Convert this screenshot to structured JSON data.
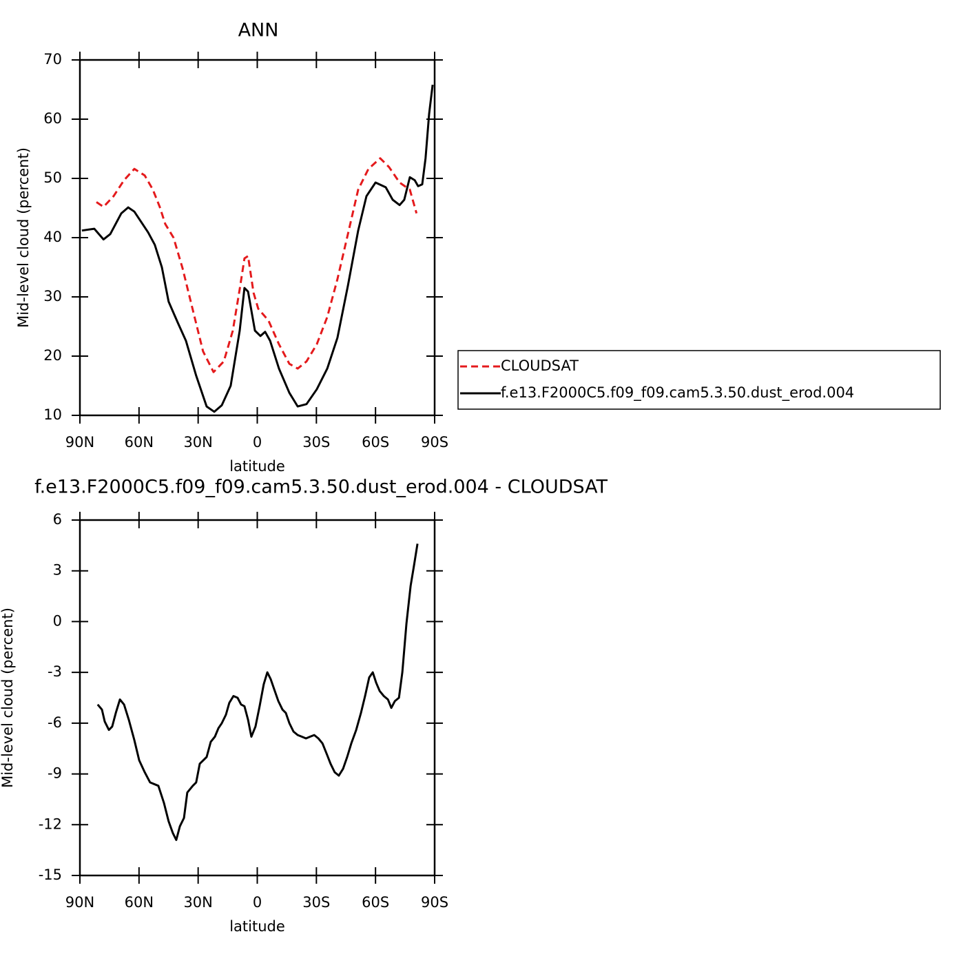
{
  "chart_data": [
    {
      "type": "line",
      "title": "ANN",
      "xlabel": "latitude",
      "ylabel": "Mid-level cloud (percent)",
      "xlim": [
        90,
        -90
      ],
      "xticks": [
        {
          "value": 90,
          "label": "90N"
        },
        {
          "value": 60,
          "label": "60N"
        },
        {
          "value": 30,
          "label": "30N"
        },
        0,
        {
          "value": -30,
          "label": "30S"
        },
        {
          "value": -60,
          "label": "60S"
        },
        {
          "value": -90,
          "label": "90S"
        }
      ],
      "ylim": [
        10,
        70
      ],
      "yticks": [
        10,
        20,
        30,
        40,
        50,
        60,
        70
      ],
      "legend": "outside-right",
      "series": [
        {
          "name": "CLOUDSAT",
          "color": "#e41a1c",
          "dash": true,
          "x": [
            81.6,
            78,
            72.9,
            67.6,
            62.4,
            57.1,
            53,
            49.5,
            46.7,
            42.5,
            37.9,
            32.7,
            27.5,
            22.2,
            17,
            12.4,
            8.9,
            6.5,
            4.7,
            1.9,
            -0.5,
            -5.7,
            -11,
            -16.3,
            -20.5,
            -25,
            -30.2,
            -35.5,
            -40.7,
            -46,
            -51.2,
            -56.4,
            -62.4,
            -66.9,
            -72.2,
            -77.4,
            -80.8
          ],
          "values": [
            46,
            45.2,
            47,
            49.7,
            51.6,
            50.5,
            48.1,
            45.2,
            42.3,
            40,
            34.8,
            27.8,
            20.8,
            17.3,
            19.1,
            24.3,
            31.3,
            36.5,
            36.9,
            30.7,
            28,
            26,
            22,
            18.7,
            17.9,
            19.1,
            22,
            26.6,
            33,
            40.6,
            48.1,
            51.6,
            53.4,
            51.9,
            49.3,
            48.1,
            44.1
          ]
        },
        {
          "name": "f.e13.F2000C5.f09_f09.cam5.3.50.dust_erod.004",
          "color": "#000000",
          "dash": false,
          "x": [
            89,
            82.7,
            78,
            74.6,
            69,
            65.5,
            62.4,
            59,
            55.4,
            52,
            48.4,
            45,
            40.4,
            36.2,
            31,
            25.7,
            21.8,
            18,
            13.5,
            8.9,
            6.5,
            4.7,
            1.2,
            -1.6,
            -4,
            -6.5,
            -11,
            -16.3,
            -20.5,
            -25,
            -30.2,
            -35.5,
            -40.7,
            -46,
            -51.2,
            -55.4,
            -60,
            -65.2,
            -68.7,
            -72.2,
            -74.6,
            -77.4,
            -79.9,
            -81.6,
            -83.7,
            -85.4,
            -87.2,
            -89
          ],
          "values": [
            41.2,
            41.5,
            39.7,
            40.6,
            44.1,
            45.1,
            44.4,
            42.7,
            40.9,
            38.8,
            35,
            29.2,
            25.7,
            22.6,
            16.7,
            11.5,
            10.6,
            11.7,
            15,
            24.3,
            31.5,
            30.9,
            24.3,
            23.4,
            24.1,
            22.6,
            17.9,
            13.8,
            11.5,
            11.9,
            14.4,
            17.9,
            23.1,
            31.9,
            41.2,
            47,
            49.3,
            48.5,
            46.4,
            45.5,
            46.4,
            50.2,
            49.7,
            48.7,
            49,
            53.4,
            60.9,
            65.8
          ]
        }
      ]
    },
    {
      "type": "line",
      "title": "f.e13.F2000C5.f09_f09.cam5.3.50.dust_erod.004 - CLOUDSAT",
      "xlabel": "latitude",
      "ylabel": "Mid-level cloud (percent)",
      "xlim": [
        90,
        -90
      ],
      "xticks": [
        {
          "value": 90,
          "label": "90N"
        },
        {
          "value": 60,
          "label": "60N"
        },
        {
          "value": 30,
          "label": "30N"
        },
        0,
        {
          "value": -30,
          "label": "30S"
        },
        {
          "value": -60,
          "label": "60S"
        },
        {
          "value": -90,
          "label": "90S"
        }
      ],
      "ylim": [
        -15,
        6
      ],
      "yticks": [
        -15,
        -12,
        -9,
        -6,
        -3,
        0,
        3,
        6
      ],
      "series": [
        {
          "color": "#000000",
          "dash": false,
          "x": [
            81,
            78.8,
            77.4,
            75.3,
            73.6,
            71.8,
            69.7,
            67.6,
            65.2,
            62.4,
            59.9,
            57.1,
            54.4,
            50.2,
            47.4,
            45,
            42.8,
            41.1,
            39.3,
            37.2,
            35.5,
            32.7,
            31,
            29.2,
            25.7,
            23.6,
            21.5,
            19.7,
            18,
            15.9,
            14.2,
            12.1,
            10,
            8.2,
            6.5,
            4.7,
            3,
            0.9,
            -1.2,
            -3.3,
            -5.1,
            -6.8,
            -8.6,
            -10.7,
            -12.8,
            -14.5,
            -16.3,
            -18.4,
            -20.5,
            -22.6,
            -24.7,
            -26.8,
            -28.9,
            -31,
            -33.1,
            -35.5,
            -37.2,
            -39.3,
            -41.4,
            -43.5,
            -45.6,
            -47.7,
            -50.2,
            -52.6,
            -54.7,
            -56.8,
            -58.6,
            -60.3,
            -62.1,
            -64.2,
            -66.3,
            -68,
            -69.8,
            -71.9,
            -73.6,
            -75.7,
            -77.8,
            -79.5,
            -81.3
          ],
          "values": [
            -4.9,
            -5.2,
            -5.9,
            -6.4,
            -6.2,
            -5.4,
            -4.6,
            -4.9,
            -5.8,
            -7,
            -8.2,
            -8.9,
            -9.5,
            -9.7,
            -10.7,
            -11.8,
            -12.5,
            -12.9,
            -12.1,
            -11.6,
            -10.1,
            -9.7,
            -9.5,
            -8.4,
            -8,
            -7.1,
            -6.8,
            -6.3,
            -6,
            -5.5,
            -4.8,
            -4.4,
            -4.5,
            -4.9,
            -5,
            -5.8,
            -6.8,
            -6.2,
            -5,
            -3.7,
            -3,
            -3.4,
            -4,
            -4.7,
            -5.2,
            -5.4,
            -6,
            -6.5,
            -6.7,
            -6.8,
            -6.9,
            -6.8,
            -6.7,
            -6.9,
            -7.2,
            -7.9,
            -8.4,
            -8.9,
            -9.1,
            -8.7,
            -8,
            -7.2,
            -6.4,
            -5.4,
            -4.4,
            -3.3,
            -3,
            -3.6,
            -4.1,
            -4.4,
            -4.6,
            -5.1,
            -4.7,
            -4.5,
            -3,
            -0.1,
            2.1,
            3.3,
            4.6
          ]
        }
      ]
    }
  ]
}
